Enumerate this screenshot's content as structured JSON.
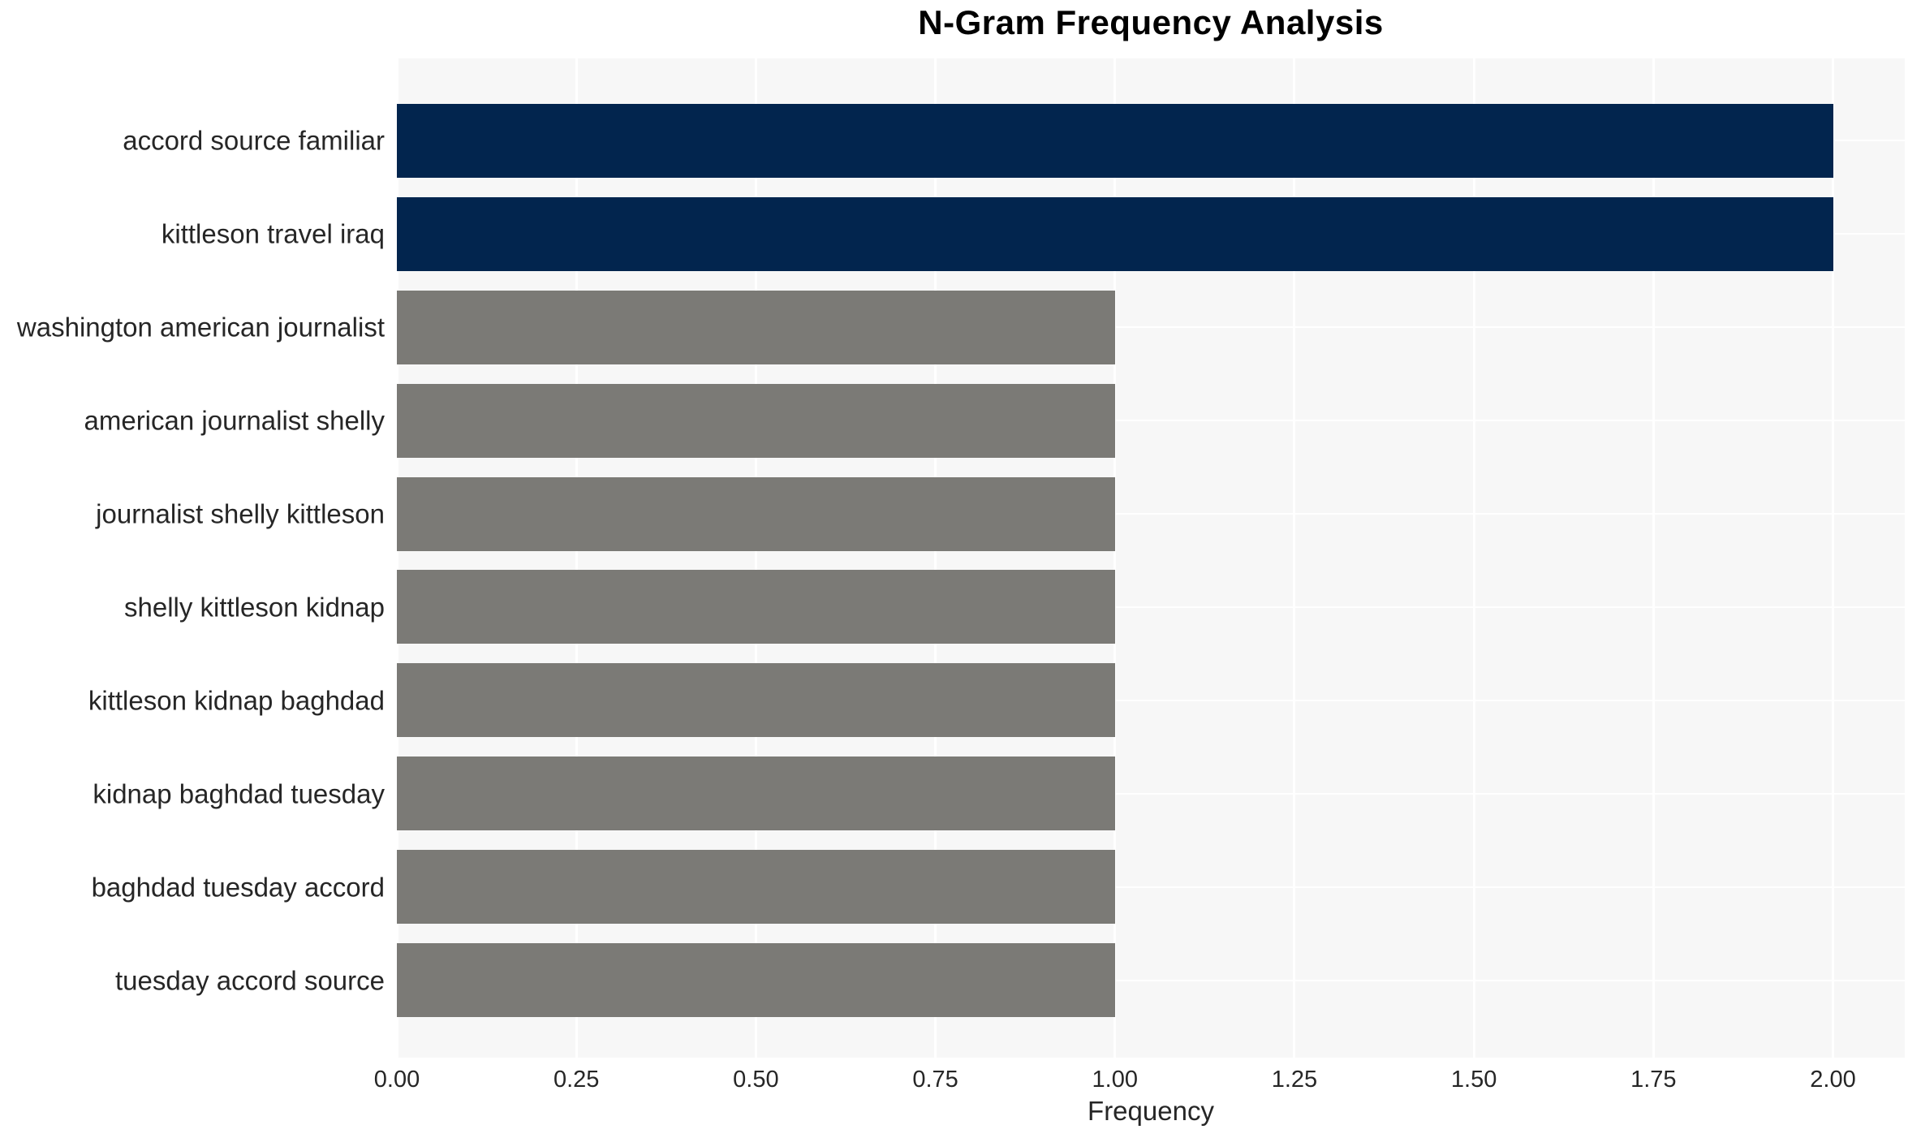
{
  "chart_data": {
    "type": "bar",
    "orientation": "horizontal",
    "title": "N-Gram Frequency Analysis",
    "xlabel": "Frequency",
    "ylabel": "",
    "categories": [
      "accord source familiar",
      "kittleson travel iraq",
      "washington american journalist",
      "american journalist shelly",
      "journalist shelly kittleson",
      "shelly kittleson kidnap",
      "kittleson kidnap baghdad",
      "kidnap baghdad tuesday",
      "baghdad tuesday accord",
      "tuesday accord source"
    ],
    "values": [
      2,
      2,
      1,
      1,
      1,
      1,
      1,
      1,
      1,
      1
    ],
    "bar_colors": [
      "#02254e",
      "#02254e",
      "#7b7a76",
      "#7b7a76",
      "#7b7a76",
      "#7b7a76",
      "#7b7a76",
      "#7b7a76",
      "#7b7a76",
      "#7b7a76"
    ],
    "xticks": {
      "values": [
        0,
        0.25,
        0.5,
        0.75,
        1.0,
        1.25,
        1.5,
        1.75,
        2.0
      ],
      "labels": [
        "0.00",
        "0.25",
        "0.50",
        "0.75",
        "1.00",
        "1.25",
        "1.50",
        "1.75",
        "2.00"
      ]
    },
    "xlim": [
      0,
      2.1
    ],
    "grid": true,
    "legend": false,
    "colors": {
      "highlight": "#02254e",
      "default_bar": "#7b7a76",
      "plot_background": "#f7f7f7",
      "grid_line": "#ffffff",
      "tick_text": "#262626",
      "title_text": "#000000"
    }
  }
}
